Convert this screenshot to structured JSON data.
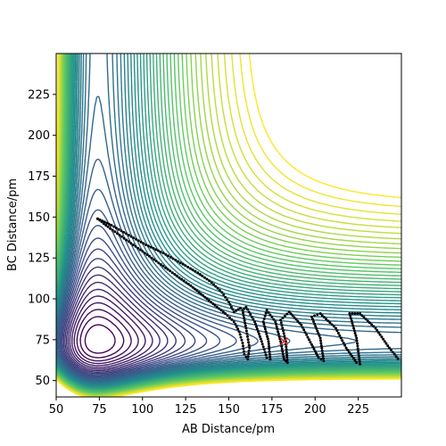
{
  "chart_data": {
    "type": "contour",
    "title": "",
    "xlabel": "AB Distance/pm",
    "ylabel": "BC Distance/pm",
    "xlim": [
      50,
      250
    ],
    "ylim": [
      40,
      250
    ],
    "x_ticks": [
      50,
      75,
      100,
      125,
      150,
      175,
      200,
      225
    ],
    "y_ticks": [
      50,
      75,
      100,
      125,
      150,
      175,
      200,
      225
    ],
    "colormap": [
      "#440154",
      "#3b528b",
      "#21918c",
      "#5ec962",
      "#fde725"
    ],
    "contour_levels": 50,
    "surface": {
      "model": "LEPS-like potential, valley near AB~75 pm (entrance) and BC~75 pm (exit)",
      "r_eq": 74,
      "saddle_approx": [
        95,
        95
      ]
    },
    "trajectory": {
      "color": "#000000",
      "start": [
        74,
        149
      ],
      "points": [
        [
          74,
          149
        ],
        [
          80,
          144
        ],
        [
          88,
          138
        ],
        [
          96,
          132
        ],
        [
          104,
          126
        ],
        [
          112,
          120
        ],
        [
          120,
          114
        ],
        [
          128,
          108
        ],
        [
          135,
          102
        ],
        [
          142,
          96
        ],
        [
          148,
          91
        ],
        [
          153,
          86
        ],
        [
          156,
          80
        ],
        [
          158,
          73
        ],
        [
          159,
          66
        ],
        [
          161,
          63
        ],
        [
          162,
          70
        ],
        [
          160,
          82
        ],
        [
          158,
          93
        ],
        [
          160,
          95
        ],
        [
          165,
          86
        ],
        [
          169,
          74
        ],
        [
          172,
          64
        ],
        [
          174,
          63
        ],
        [
          173,
          74
        ],
        [
          170,
          86
        ],
        [
          172,
          93
        ],
        [
          177,
          86
        ],
        [
          180,
          74
        ],
        [
          182,
          63
        ],
        [
          184,
          61
        ],
        [
          183,
          74
        ],
        [
          180,
          87
        ],
        [
          185,
          92
        ],
        [
          192,
          84
        ],
        [
          198,
          72
        ],
        [
          202,
          64
        ],
        [
          205,
          62
        ],
        [
          203,
          76
        ],
        [
          198,
          89
        ],
        [
          203,
          91
        ],
        [
          212,
          82
        ],
        [
          218,
          70
        ],
        [
          224,
          61
        ],
        [
          226,
          60
        ],
        [
          224,
          76
        ],
        [
          220,
          91
        ],
        [
          226,
          91
        ],
        [
          235,
          82
        ],
        [
          243,
          70
        ],
        [
          249,
          62
        ]
      ],
      "approach_points": [
        [
          74,
          149
        ],
        [
          82,
          145
        ],
        [
          92,
          139
        ],
        [
          102,
          133
        ],
        [
          112,
          128
        ],
        [
          122,
          122
        ],
        [
          132,
          116
        ],
        [
          140,
          110
        ],
        [
          146,
          104
        ],
        [
          150,
          98
        ],
        [
          153,
          92
        ],
        [
          158,
          95
        ]
      ]
    },
    "marker": {
      "symbol": "x",
      "color": "#d62728",
      "position": [
        182,
        74
      ]
    }
  }
}
